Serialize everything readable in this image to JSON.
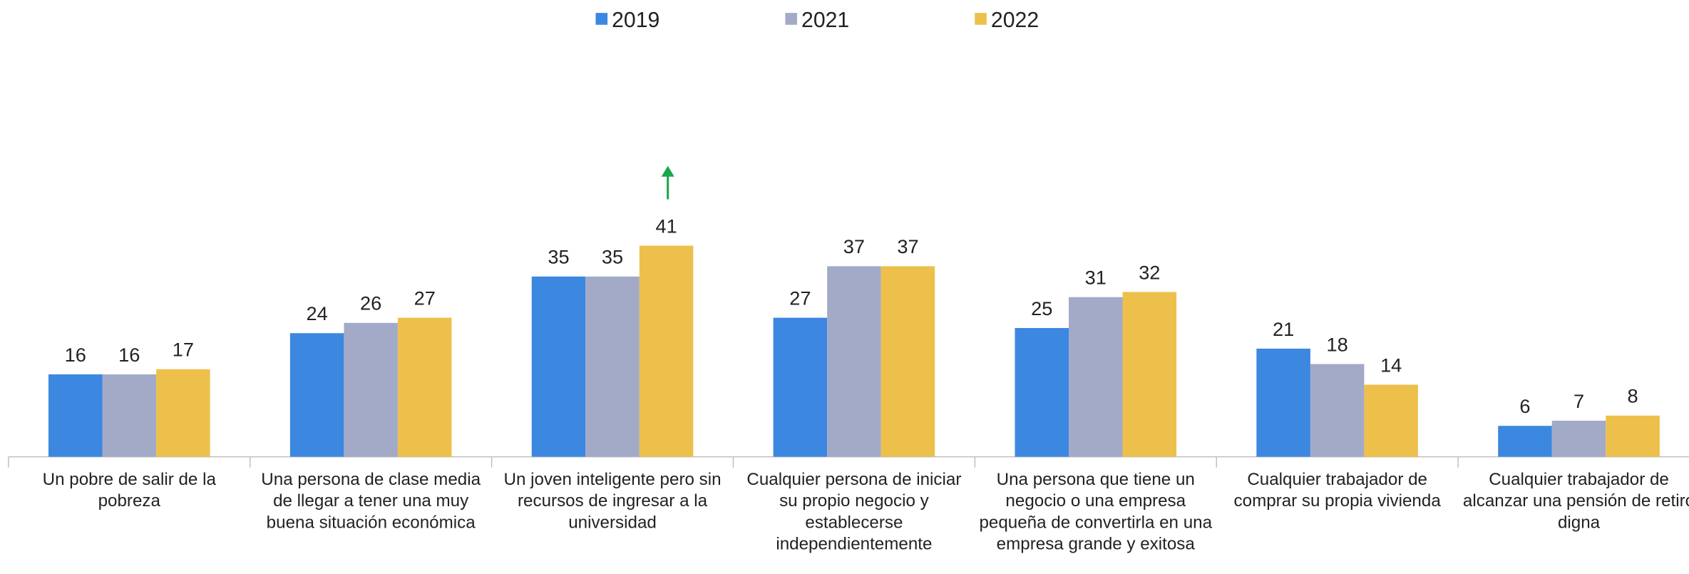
{
  "chart_data": {
    "type": "bar",
    "categories": [
      "Un pobre de salir de la pobreza",
      "Una persona de clase media de llegar a tener una muy buena situación económica",
      "Un joven inteligente pero sin recursos de ingresar a la universidad",
      "Cualquier persona de iniciar su propio negocio y establecerse independientemente",
      "Una persona que tiene un negocio o una empresa pequeña de convertirla en una empresa grande y exitosa",
      "Cualquier trabajador de comprar su propia vivienda",
      "Cualquier trabajador de alcanzar una pensión de retiro digna"
    ],
    "series": [
      {
        "name": "2019",
        "color": "#3c87e0",
        "values": [
          16,
          24,
          35,
          27,
          25,
          21,
          6
        ]
      },
      {
        "name": "2021",
        "color": "#a2aac8",
        "values": [
          16,
          26,
          35,
          37,
          31,
          18,
          7
        ]
      },
      {
        "name": "2022",
        "color": "#ecc04a",
        "values": [
          17,
          27,
          41,
          37,
          32,
          14,
          8
        ]
      }
    ],
    "legend": "top"
  }
}
